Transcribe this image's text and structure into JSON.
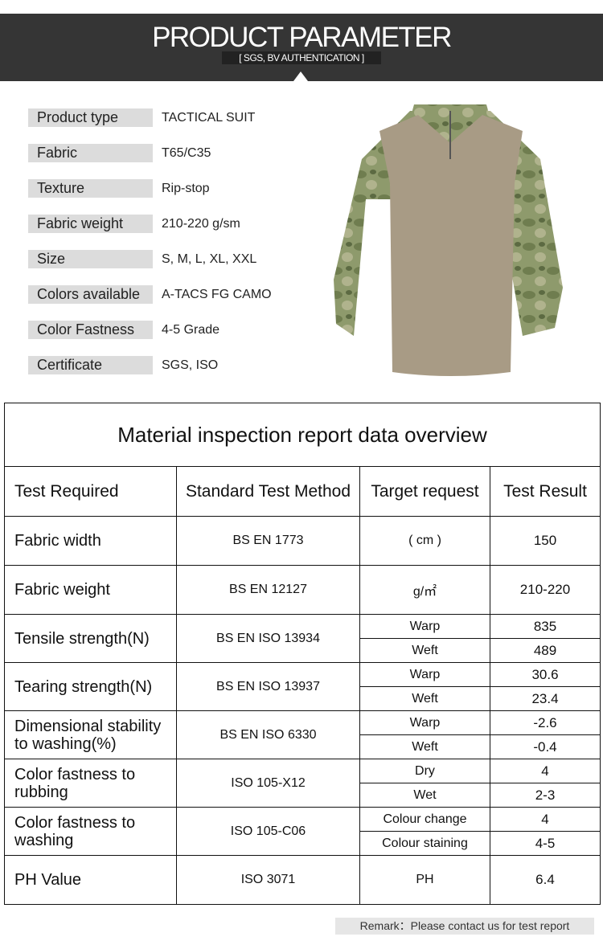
{
  "header": {
    "title": "PRODUCT PARAMETER",
    "subtitle": "[ SGS, BV AUTHENTICATION ]"
  },
  "params": [
    {
      "label": "Product type",
      "value": "TACTICAL SUIT"
    },
    {
      "label": "Fabric",
      "value": "T65/C35"
    },
    {
      "label": "Texture",
      "value": "Rip-stop"
    },
    {
      "label": "Fabric weight",
      "value": "210-220 g/sm"
    },
    {
      "label": "Size",
      "value": "S, M, L, XL, XXL"
    },
    {
      "label": "Colors available",
      "value": "A-TACS FG CAMO"
    },
    {
      "label": "Color Fastness",
      "value": "4-5 Grade"
    },
    {
      "label": "Certificate",
      "value": "SGS, ISO"
    }
  ],
  "report": {
    "title": "Material inspection report data overview",
    "columns": [
      "Test Required",
      "Standard Test Method",
      "Target request",
      "Test Result"
    ],
    "rows": [
      {
        "test": "Fabric width",
        "method": "BS EN 1773",
        "target": "( cm )",
        "result": "150"
      },
      {
        "test": "Fabric weight",
        "method": "BS EN 12127",
        "target": "g/㎡",
        "result": "210-220"
      },
      {
        "test": "Tensile strength(N)",
        "method": "BS EN ISO 13934",
        "sub": [
          {
            "target": "Warp",
            "result": "835"
          },
          {
            "target": "Weft",
            "result": "489"
          }
        ]
      },
      {
        "test": "Tearing strength(N)",
        "method": "BS EN ISO 13937",
        "sub": [
          {
            "target": "Warp",
            "result": "30.6"
          },
          {
            "target": "Weft",
            "result": "23.4"
          }
        ]
      },
      {
        "test": "Dimensional stability to washing(%)",
        "method": "BS EN ISO 6330",
        "sub": [
          {
            "target": "Warp",
            "result": "-2.6"
          },
          {
            "target": "Weft",
            "result": "-0.4"
          }
        ]
      },
      {
        "test": "Color fastness to rubbing",
        "method": "ISO 105-X12",
        "sub": [
          {
            "target": "Dry",
            "result": "4"
          },
          {
            "target": "Wet",
            "result": "2-3"
          }
        ]
      },
      {
        "test": "Color fastness to washing",
        "method": "ISO 105-C06",
        "sub": [
          {
            "target": "Colour change",
            "result": "4"
          },
          {
            "target": "Colour staining",
            "result": "4-5"
          }
        ]
      },
      {
        "test": "PH Value",
        "method": "ISO 3071",
        "target": "PH",
        "result": "6.4"
      }
    ]
  },
  "remark": "Remark：Please contact us for test report"
}
